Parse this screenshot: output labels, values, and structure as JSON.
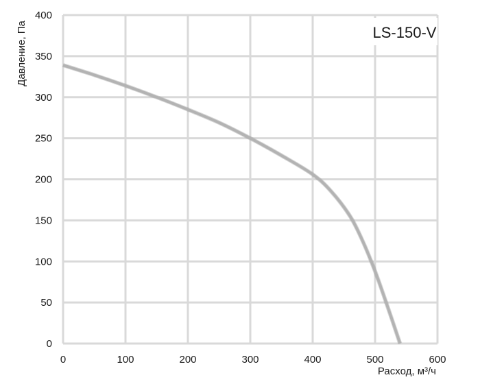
{
  "chart_data": {
    "type": "line",
    "title": "LS-150-V",
    "xlabel": "Расход, м³/ч",
    "ylabel": "Давление, Па",
    "xlim": [
      0,
      600
    ],
    "ylim": [
      0,
      400
    ],
    "xticks": [
      0,
      100,
      200,
      300,
      400,
      500,
      600
    ],
    "yticks": [
      0,
      50,
      100,
      150,
      200,
      250,
      300,
      350,
      400
    ],
    "grid": true,
    "series": [
      {
        "color": "#b3b3b3",
        "x": [
          0,
          50,
          100,
          150,
          200,
          250,
          300,
          350,
          400,
          430,
          460,
          480,
          500,
          520,
          540
        ],
        "y": [
          339,
          327,
          314,
          300,
          285,
          269,
          250,
          229,
          206,
          185,
          155,
          125,
          88,
          45,
          0
        ]
      }
    ]
  }
}
